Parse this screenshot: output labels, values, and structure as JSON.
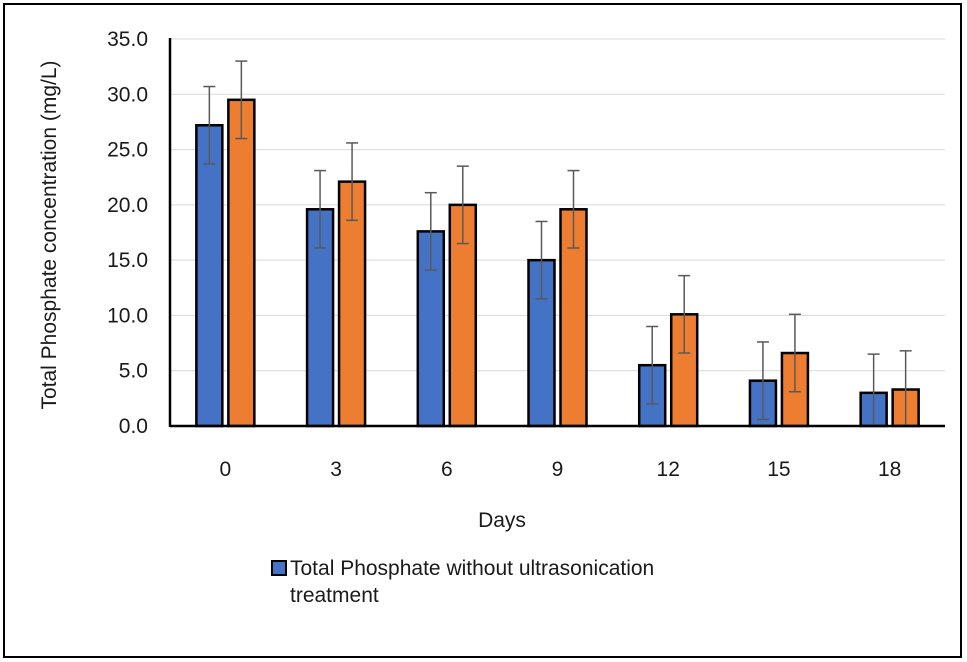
{
  "chart_data": {
    "type": "bar",
    "title": "",
    "xlabel": "Days",
    "ylabel": "Total Phosphate concentration (mg/L)",
    "categories": [
      "0",
      "3",
      "6",
      "9",
      "12",
      "15",
      "18"
    ],
    "ylim": [
      0,
      35
    ],
    "yticks": [
      "0.0",
      "5.0",
      "10.0",
      "15.0",
      "20.0",
      "25.0",
      "30.0",
      "35.0"
    ],
    "grid": "horizontal",
    "legend_position": "bottom",
    "series": [
      {
        "name": "Total Phosphate without ultrasonication treatment",
        "color": "#4472C4",
        "values": [
          27.2,
          19.6,
          17.6,
          15.0,
          5.5,
          4.1,
          3.0
        ],
        "error": [
          3.5,
          3.5,
          3.5,
          3.5,
          3.5,
          3.5,
          3.5
        ]
      },
      {
        "color": "#ED7D31",
        "values": [
          29.5,
          22.1,
          20.0,
          19.6,
          10.1,
          6.6,
          3.3
        ],
        "error": [
          3.5,
          3.5,
          3.5,
          3.5,
          3.5,
          3.5,
          3.5
        ]
      }
    ]
  }
}
